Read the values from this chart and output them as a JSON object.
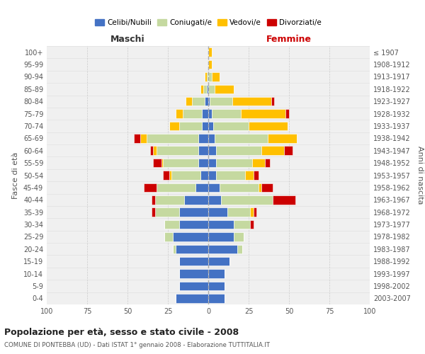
{
  "age_groups": [
    "0-4",
    "5-9",
    "10-14",
    "15-19",
    "20-24",
    "25-29",
    "30-34",
    "35-39",
    "40-44",
    "45-49",
    "50-54",
    "55-59",
    "60-64",
    "65-69",
    "70-74",
    "75-79",
    "80-84",
    "85-89",
    "90-94",
    "95-99",
    "100+"
  ],
  "birth_years": [
    "2003-2007",
    "1998-2002",
    "1993-1997",
    "1988-1992",
    "1983-1987",
    "1978-1982",
    "1973-1977",
    "1968-1972",
    "1963-1967",
    "1958-1962",
    "1953-1957",
    "1948-1952",
    "1943-1947",
    "1938-1942",
    "1933-1937",
    "1928-1932",
    "1923-1927",
    "1918-1922",
    "1913-1917",
    "1908-1912",
    "≤ 1907"
  ],
  "colors": {
    "celibi": "#4472c4",
    "coniugati": "#c5d9a0",
    "vedovi": "#ffc000",
    "divorziati": "#cc0000"
  },
  "maschi": {
    "celibi": [
      20,
      18,
      18,
      18,
      20,
      22,
      18,
      18,
      15,
      8,
      5,
      6,
      6,
      6,
      4,
      4,
      2,
      1,
      0,
      0,
      0
    ],
    "coniugati": [
      0,
      0,
      0,
      0,
      2,
      5,
      9,
      15,
      18,
      24,
      18,
      22,
      26,
      32,
      14,
      12,
      8,
      2,
      1,
      0,
      0
    ],
    "vedovi": [
      0,
      0,
      0,
      0,
      0,
      0,
      0,
      0,
      0,
      0,
      1,
      1,
      2,
      4,
      6,
      4,
      4,
      2,
      1,
      0,
      0
    ],
    "divorziati": [
      0,
      0,
      0,
      0,
      0,
      0,
      0,
      2,
      2,
      8,
      4,
      5,
      2,
      4,
      0,
      0,
      0,
      0,
      0,
      0,
      0
    ]
  },
  "femmine": {
    "celibi": [
      10,
      10,
      10,
      13,
      18,
      16,
      16,
      12,
      8,
      7,
      5,
      5,
      5,
      4,
      3,
      2,
      1,
      0,
      0,
      0,
      0
    ],
    "coniugati": [
      0,
      0,
      0,
      0,
      3,
      6,
      10,
      14,
      32,
      24,
      18,
      22,
      28,
      33,
      22,
      18,
      14,
      4,
      2,
      0,
      0
    ],
    "vedovi": [
      0,
      0,
      0,
      0,
      0,
      0,
      0,
      2,
      0,
      2,
      5,
      8,
      14,
      18,
      24,
      28,
      24,
      12,
      5,
      2,
      2
    ],
    "divorziati": [
      0,
      0,
      0,
      0,
      0,
      0,
      2,
      2,
      14,
      7,
      3,
      3,
      5,
      0,
      0,
      2,
      2,
      0,
      0,
      0,
      0
    ]
  },
  "xlim": 100,
  "title": "Popolazione per età, sesso e stato civile - 2008",
  "subtitle": "COMUNE DI PONTEBBA (UD) - Dati ISTAT 1° gennaio 2008 - Elaborazione TUTTITALIA.IT",
  "ylabel_left": "Fasce di età",
  "ylabel_right": "Anni di nascita",
  "xlabel_left": "Maschi",
  "xlabel_right": "Femmine",
  "legend_labels": [
    "Celibi/Nubili",
    "Coniugati/e",
    "Vedovi/e",
    "Divorziati/e"
  ],
  "background_color": "#ffffff",
  "plot_bg": "#f0f0f0",
  "grid_color": "#cccccc"
}
